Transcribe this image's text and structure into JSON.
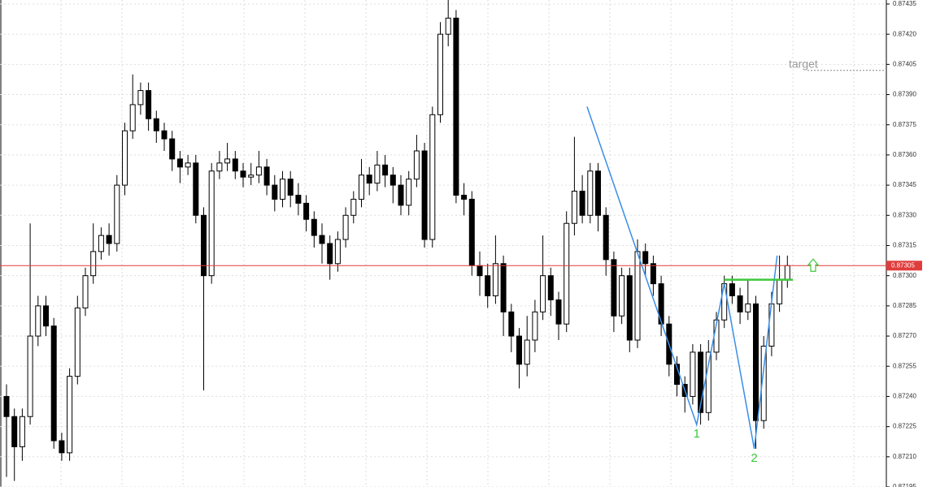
{
  "chart_data": {
    "type": "candlestick",
    "open": [
      0.8724,
      0.8723,
      0.87215,
      0.8723,
      0.8727,
      0.87285,
      0.87275,
      0.87218,
      0.87212,
      0.8725,
      0.87284,
      0.873,
      0.87312,
      0.8732,
      0.87316,
      0.87345,
      0.87372,
      0.87385,
      0.87392,
      0.87378,
      0.87372,
      0.87368,
      0.87358,
      0.87354,
      0.87356,
      0.8733,
      0.873,
      0.87352,
      0.87356,
      0.87358,
      0.87352,
      0.87349,
      0.8735,
      0.87354,
      0.87345,
      0.87338,
      0.87348,
      0.8734,
      0.87336,
      0.87328,
      0.8732,
      0.87316,
      0.87306,
      0.87318,
      0.8733,
      0.87338,
      0.8735,
      0.87346,
      0.87355,
      0.8735,
      0.87345,
      0.87335,
      0.87348,
      0.87362,
      0.87318,
      0.8738,
      0.8742,
      0.87428,
      0.8734,
      0.87338,
      0.87305,
      0.873,
      0.8729,
      0.87306,
      0.87282,
      0.8727,
      0.87256,
      0.87268,
      0.87282,
      0.873,
      0.87288,
      0.87276,
      0.87326,
      0.87342,
      0.8733,
      0.87352,
      0.8733,
      0.87308,
      0.8728,
      0.873,
      0.87268,
      0.87312,
      0.87306,
      0.87296,
      0.87276,
      0.87256,
      0.87246,
      0.8724,
      0.87262,
      0.87232,
      0.87262,
      0.87278,
      0.87296,
      0.8729,
      0.87282,
      0.87286,
      0.87228,
      0.87265,
      0.87286,
      0.87298
    ],
    "close": [
      0.8723,
      0.87215,
      0.8723,
      0.8727,
      0.87285,
      0.87275,
      0.87218,
      0.87212,
      0.8725,
      0.87284,
      0.873,
      0.87312,
      0.8732,
      0.87316,
      0.87345,
      0.87372,
      0.87385,
      0.87392,
      0.87378,
      0.87372,
      0.87368,
      0.87358,
      0.87354,
      0.87356,
      0.8733,
      0.873,
      0.87352,
      0.87356,
      0.87358,
      0.87352,
      0.87349,
      0.8735,
      0.87354,
      0.87345,
      0.87338,
      0.87348,
      0.8734,
      0.87336,
      0.87328,
      0.8732,
      0.87316,
      0.87306,
      0.87318,
      0.8733,
      0.87338,
      0.8735,
      0.87346,
      0.87355,
      0.8735,
      0.87345,
      0.87335,
      0.87348,
      0.87362,
      0.87318,
      0.8738,
      0.8742,
      0.87428,
      0.8734,
      0.87338,
      0.87305,
      0.873,
      0.8729,
      0.87306,
      0.87282,
      0.8727,
      0.87256,
      0.87268,
      0.87282,
      0.873,
      0.87288,
      0.87276,
      0.87326,
      0.87342,
      0.8733,
      0.87352,
      0.8733,
      0.87308,
      0.8728,
      0.873,
      0.87268,
      0.87312,
      0.87306,
      0.87296,
      0.87276,
      0.87256,
      0.87246,
      0.8724,
      0.87262,
      0.87232,
      0.87262,
      0.87278,
      0.87296,
      0.8729,
      0.87282,
      0.87286,
      0.87228,
      0.87265,
      0.87286,
      0.87298,
      0.87305
    ],
    "high": [
      0.87246,
      0.87234,
      0.87234,
      0.87326,
      0.8729,
      0.8729,
      0.87279,
      0.87222,
      0.87254,
      0.8729,
      0.87304,
      0.87326,
      0.87324,
      0.87326,
      0.8735,
      0.87376,
      0.874,
      0.87396,
      0.87396,
      0.87382,
      0.87376,
      0.87372,
      0.87362,
      0.8736,
      0.8736,
      0.87334,
      0.87356,
      0.87362,
      0.87366,
      0.87362,
      0.87356,
      0.87356,
      0.87362,
      0.87358,
      0.8735,
      0.87352,
      0.87352,
      0.87346,
      0.8734,
      0.87332,
      0.87326,
      0.8732,
      0.87322,
      0.87334,
      0.87342,
      0.87358,
      0.87354,
      0.87362,
      0.8736,
      0.87354,
      0.8735,
      0.87352,
      0.8737,
      0.87366,
      0.87384,
      0.87426,
      0.87437,
      0.87432,
      0.87346,
      0.87342,
      0.87312,
      0.87306,
      0.8732,
      0.8731,
      0.87286,
      0.87274,
      0.8728,
      0.87288,
      0.8732,
      0.87304,
      0.87292,
      0.87332,
      0.87369,
      0.8735,
      0.87356,
      0.87356,
      0.87334,
      0.87312,
      0.87304,
      0.87304,
      0.87318,
      0.87316,
      0.8731,
      0.873,
      0.8728,
      0.8726,
      0.8725,
      0.87266,
      0.87266,
      0.87268,
      0.87282,
      0.873,
      0.873,
      0.87294,
      0.87298,
      0.8729,
      0.8727,
      0.87292,
      0.8731,
      0.8731
    ],
    "low": [
      0.872,
      0.87198,
      0.87208,
      0.87226,
      0.87265,
      0.8727,
      0.87214,
      0.87208,
      0.87208,
      0.87246,
      0.8728,
      0.87296,
      0.87308,
      0.8731,
      0.87312,
      0.8734,
      0.87368,
      0.8738,
      0.87372,
      0.87366,
      0.87362,
      0.87352,
      0.87346,
      0.8735,
      0.87326,
      0.87243,
      0.87296,
      0.87348,
      0.87352,
      0.87348,
      0.87344,
      0.87345,
      0.87346,
      0.8734,
      0.87332,
      0.87334,
      0.87334,
      0.8733,
      0.87322,
      0.87314,
      0.87306,
      0.87298,
      0.87302,
      0.87314,
      0.87326,
      0.87334,
      0.8734,
      0.87342,
      0.87344,
      0.87336,
      0.8733,
      0.8733,
      0.87344,
      0.87314,
      0.87314,
      0.87376,
      0.87414,
      0.87336,
      0.8733,
      0.873,
      0.8729,
      0.87284,
      0.87286,
      0.8727,
      0.87262,
      0.87244,
      0.8725,
      0.87262,
      0.87278,
      0.8728,
      0.87268,
      0.87272,
      0.8732,
      0.87326,
      0.87326,
      0.87322,
      0.873,
      0.87272,
      0.87276,
      0.87262,
      0.87264,
      0.873,
      0.8729,
      0.8727,
      0.8725,
      0.8724,
      0.87232,
      0.87236,
      0.87226,
      0.87228,
      0.87258,
      0.87274,
      0.87286,
      0.87276,
      0.87278,
      0.87214,
      0.87224,
      0.8726,
      0.87282,
      0.87294
    ],
    "ylim": [
      0.87195,
      0.87437
    ],
    "yticks": [
      0.87435,
      {
        "value": 0.8742,
        "label": "0.87420"
      },
      0.87405,
      {
        "value": 0.8739,
        "label": "0.87390"
      },
      0.87375,
      {
        "value": 0.8736,
        "label": "0.87360"
      },
      0.87345,
      {
        "value": 0.8733,
        "label": "0.87330"
      },
      0.87315,
      {
        "value": 0.873,
        "label": "0.87300"
      },
      0.87285,
      {
        "value": 0.8727,
        "label": "0.87270"
      },
      0.87255,
      {
        "value": 0.8724,
        "label": "0.87240"
      },
      0.87225,
      {
        "value": 0.8721,
        "label": "0.87210"
      },
      0.87195
    ],
    "grid": true,
    "price_line": {
      "value": 0.87305,
      "color": "#e03c3c"
    },
    "target": {
      "label": "target",
      "price": 0.87402
    },
    "zigzag": {
      "color": "#3a8ee6",
      "points": [
        {
          "x": 73.6,
          "price": 0.87384
        },
        {
          "x": 87.5,
          "price": 0.87226,
          "label": "1"
        },
        {
          "x": 91,
          "price": 0.87296
        },
        {
          "x": 94.8,
          "price": 0.87214,
          "label": "2"
        },
        {
          "x": 97.7,
          "price": 0.8731
        }
      ]
    },
    "level": {
      "price": 0.87298,
      "from": 91,
      "to": 99.7,
      "color": "#3cc83c"
    }
  }
}
